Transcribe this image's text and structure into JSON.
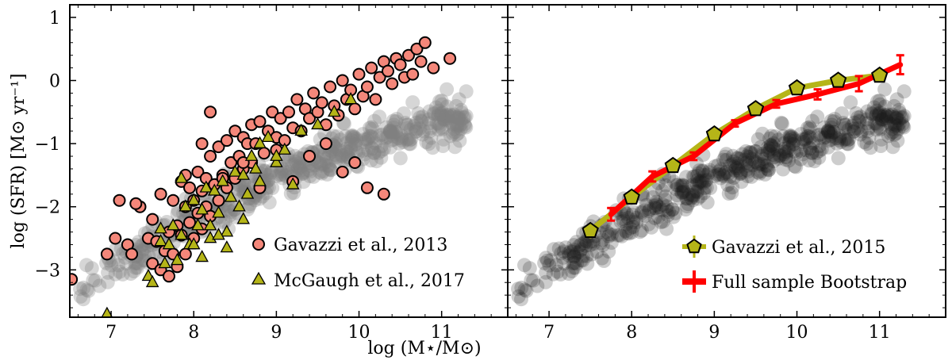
{
  "chart_data": [
    {
      "type": "scatter",
      "panel": "left",
      "xlabel": "log (M⋆/M⊙)",
      "ylabel": "log (SFR) [M⊙ yr⁻¹]",
      "xlim": [
        6.5,
        11.8
      ],
      "ylim": [
        -3.75,
        1.2
      ],
      "xticks": [
        7,
        8,
        9,
        10,
        11
      ],
      "yticks": [
        -3,
        -2,
        -1,
        0,
        1
      ],
      "xtick_labels": [
        "7",
        "8",
        "9",
        "10",
        "11"
      ],
      "ytick_labels": [
        "−3",
        "−2",
        "−1",
        "0",
        "1"
      ],
      "grid": false,
      "legend_position": "lower-right",
      "colors": {
        "background_points": "#808080",
        "gavazzi_2013": "#f4877a",
        "mcgaugh_2017": "#b5b518"
      },
      "series": [
        {
          "name": "Gavazzi et al., 2013",
          "legend_label": "Gavazzi et al., 2013",
          "marker": "circle",
          "x": [
            6.52,
            6.95,
            7.05,
            7.1,
            7.2,
            7.25,
            7.35,
            7.45,
            7.5,
            7.5,
            7.55,
            7.6,
            7.6,
            7.65,
            7.7,
            7.7,
            7.75,
            7.75,
            7.8,
            7.8,
            7.85,
            7.85,
            7.9,
            7.9,
            7.95,
            7.95,
            8.0,
            8.0,
            8.05,
            8.05,
            8.1,
            8.1,
            8.15,
            8.15,
            8.2,
            8.2,
            8.25,
            8.3,
            8.3,
            8.35,
            8.4,
            8.4,
            8.45,
            8.5,
            8.5,
            8.55,
            8.6,
            8.6,
            8.65,
            8.7,
            8.7,
            8.75,
            8.8,
            8.85,
            8.9,
            8.95,
            9.0,
            9.05,
            9.1,
            9.15,
            9.2,
            9.25,
            9.3,
            9.35,
            9.4,
            9.45,
            9.5,
            9.55,
            9.6,
            9.65,
            9.7,
            9.75,
            9.8,
            9.85,
            9.9,
            9.95,
            10.0,
            10.05,
            10.1,
            10.15,
            10.2,
            10.25,
            10.3,
            10.35,
            10.4,
            10.45,
            10.5,
            10.55,
            10.6,
            10.65,
            10.7,
            10.75,
            10.8,
            10.9,
            11.1,
            8.2,
            7.3,
            7.9,
            8.1,
            8.35,
            8.6,
            8.8,
            9.0,
            9.2,
            9.4,
            9.6,
            9.8,
            9.95,
            10.1,
            10.3
          ],
          "y": [
            -3.15,
            -2.75,
            -2.5,
            -1.9,
            -2.6,
            -2.75,
            -2.0,
            -2.5,
            -2.9,
            -2.2,
            -2.55,
            -3.0,
            -1.8,
            -2.7,
            -2.4,
            -3.1,
            -1.9,
            -2.75,
            -2.3,
            -2.95,
            -1.6,
            -2.45,
            -2.0,
            -2.75,
            -1.7,
            -2.25,
            -1.9,
            -2.5,
            -1.45,
            -2.1,
            -1.75,
            -2.35,
            -1.55,
            -2.0,
            -1.2,
            -2.15,
            -1.65,
            -1.05,
            -1.9,
            -1.5,
            -0.95,
            -1.7,
            -1.3,
            -0.8,
            -1.55,
            -1.2,
            -0.9,
            -1.4,
            -1.0,
            -0.7,
            -1.3,
            -1.0,
            -0.65,
            -1.15,
            -0.8,
            -0.5,
            -0.9,
            -0.6,
            -0.95,
            -0.5,
            -0.75,
            -0.3,
            -0.8,
            -0.45,
            -0.6,
            -0.2,
            -0.5,
            -0.35,
            -0.7,
            -0.1,
            -0.4,
            -0.55,
            0.0,
            -0.3,
            -0.15,
            -0.45,
            0.1,
            -0.25,
            -0.1,
            0.2,
            -0.3,
            0.05,
            0.3,
            0.15,
            -0.05,
            0.35,
            0.25,
            0.05,
            0.4,
            0.1,
            0.5,
            0.3,
            0.6,
            0.2,
            0.35,
            -0.5,
            -1.95,
            -1.5,
            -1.0,
            -1.55,
            -1.3,
            -1.7,
            -1.1,
            -1.6,
            -1.2,
            -1.0,
            -1.45,
            -1.3,
            -1.7,
            -1.8
          ]
        },
        {
          "name": "McGaugh et al., 2017",
          "legend_label": "McGaugh et al., 2017",
          "marker": "triangle",
          "x": [
            6.95,
            7.45,
            7.5,
            7.6,
            7.65,
            7.7,
            7.75,
            7.8,
            7.85,
            7.9,
            7.95,
            8.0,
            8.05,
            8.1,
            8.15,
            8.2,
            8.25,
            8.3,
            8.35,
            8.4,
            8.45,
            8.5,
            8.55,
            8.6,
            8.65,
            8.7,
            8.75,
            8.8,
            8.9,
            9.0,
            9.1,
            9.2,
            9.3,
            9.5,
            9.7,
            9.9,
            7.6,
            7.85,
            8.0,
            8.2,
            8.4,
            8.6,
            8.8,
            9.0,
            8.1,
            8.3
          ],
          "y": [
            -3.7,
            -3.1,
            -3.2,
            -2.55,
            -2.9,
            -2.6,
            -2.3,
            -2.85,
            -2.45,
            -2.0,
            -2.6,
            -1.9,
            -2.3,
            -2.05,
            -1.7,
            -2.3,
            -1.75,
            -2.1,
            -1.6,
            -2.4,
            -1.85,
            -1.45,
            -2.0,
            -1.5,
            -1.8,
            -1.2,
            -1.4,
            -1.6,
            -0.9,
            -1.3,
            -1.1,
            -1.65,
            -0.8,
            -0.7,
            -0.5,
            -0.3,
            -2.35,
            -1.55,
            -2.6,
            -2.5,
            -2.65,
            -2.2,
            -1.0,
            -1.2,
            -2.8,
            -2.45
          ]
        }
      ]
    },
    {
      "type": "scatter",
      "panel": "right",
      "xlabel": "",
      "ylabel": "",
      "xlim": [
        6.5,
        11.8
      ],
      "ylim": [
        -3.75,
        1.2
      ],
      "xticks": [
        7,
        8,
        9,
        10,
        11
      ],
      "xtick_labels": [
        "7",
        "8",
        "9",
        "10",
        "11"
      ],
      "grid": false,
      "legend_position": "lower-right",
      "colors": {
        "background_points": "#1a1a1a",
        "gavazzi_2015": "#b5b518",
        "bootstrap": "#ff0000"
      },
      "series": [
        {
          "name": "Gavazzi et al., 2015",
          "legend_label": "Gavazzi et al., 2015",
          "marker": "pentagon",
          "x": [
            7.5,
            8.0,
            8.5,
            9.0,
            9.5,
            10.0,
            10.5,
            11.0
          ],
          "y": [
            -2.38,
            -1.85,
            -1.35,
            -0.85,
            -0.45,
            -0.12,
            0.0,
            0.08
          ],
          "err": [
            0.12,
            0.1,
            0.08,
            0.07,
            0.06,
            0.06,
            0.08,
            0.1
          ]
        },
        {
          "name": "Full sample Bootstrap",
          "legend_label": "Full sample Bootstrap",
          "marker": "line",
          "x": [
            7.75,
            8.25,
            8.75,
            9.25,
            9.75,
            10.25,
            10.75,
            11.25
          ],
          "y": [
            -2.12,
            -1.52,
            -1.2,
            -0.68,
            -0.37,
            -0.22,
            -0.05,
            0.25
          ],
          "err": [
            0.1,
            0.08,
            0.06,
            0.05,
            0.06,
            0.08,
            0.12,
            0.15
          ]
        }
      ]
    }
  ]
}
